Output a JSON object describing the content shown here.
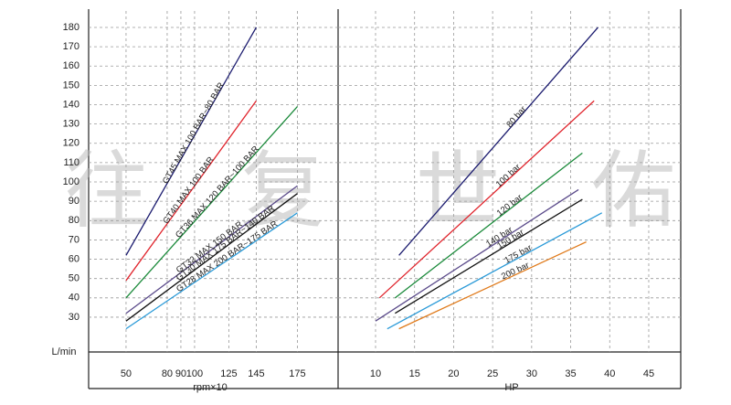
{
  "watermark": "往复世佑",
  "chart_data": [
    {
      "type": "line",
      "x_label": "rpm×10",
      "y_label": "L/min",
      "xlim": [
        22.7,
        204.7
      ],
      "xticks": [
        50,
        80,
        90,
        100,
        125,
        145,
        175
      ],
      "ylim": [
        12,
        188.5
      ],
      "yticks": [
        30,
        40,
        50,
        60,
        70,
        80,
        90,
        100,
        110,
        120,
        130,
        140,
        150,
        160,
        170,
        180
      ],
      "grid": true,
      "series": [
        {
          "name": "GT45 MAX 100 BAR~80 BAR",
          "color": "#1a1a6e",
          "x": [
            50,
            145
          ],
          "values": [
            62,
            180
          ]
        },
        {
          "name": "GT40 MAX 100 BAR",
          "color": "#e0242c",
          "x": [
            50,
            145
          ],
          "values": [
            49,
            142
          ]
        },
        {
          "name": "GT36 MAX 120 BAR~100 BAR",
          "color": "#1a8a3a",
          "x": [
            50,
            175
          ],
          "values": [
            40,
            139
          ]
        },
        {
          "name": "GT32 MAX 150 BAR",
          "color": "#5a4a8a",
          "x": [
            50,
            175
          ],
          "values": [
            32,
            98
          ]
        },
        {
          "name": "GT30 MAX 175 BAR~140 BAR",
          "color": "#111111",
          "x": [
            50,
            175
          ],
          "values": [
            28,
            94
          ]
        },
        {
          "name": "GT28 MAX 200 BAR~175 BAR",
          "color": "#2a9ad8",
          "x": [
            50,
            175
          ],
          "values": [
            24,
            84
          ]
        }
      ]
    },
    {
      "type": "line",
      "x_label": "HP",
      "xlim": [
        5.2,
        49.1
      ],
      "xticks": [
        10,
        15,
        20,
        25,
        30,
        35,
        40,
        45
      ],
      "ylim": [
        12,
        188.5
      ],
      "yticks": [
        30,
        40,
        50,
        60,
        70,
        80,
        90,
        100,
        110,
        120,
        130,
        140,
        150,
        160,
        170,
        180
      ],
      "grid": true,
      "series": [
        {
          "name": "80 bar",
          "color": "#1a1a6e",
          "x": [
            13,
            38.5
          ],
          "values": [
            62,
            180
          ]
        },
        {
          "name": "100 bar",
          "color": "#e0242c",
          "x": [
            10.5,
            38
          ],
          "values": [
            40,
            142
          ]
        },
        {
          "name": "120 bar",
          "color": "#1a8a3a",
          "x": [
            12.5,
            36.5
          ],
          "values": [
            40,
            115
          ]
        },
        {
          "name": "140 bar",
          "color": "#5a4a8a",
          "x": [
            10,
            36
          ],
          "values": [
            28,
            96
          ]
        },
        {
          "name": "150 bar",
          "color": "#111111",
          "x": [
            12.5,
            36.5
          ],
          "values": [
            32,
            91
          ]
        },
        {
          "name": "175 bar",
          "color": "#2a9ad8",
          "x": [
            11.5,
            39
          ],
          "values": [
            24,
            84
          ]
        },
        {
          "name": "200 bar",
          "color": "#e07a1a",
          "x": [
            13,
            37
          ],
          "values": [
            24,
            69
          ]
        }
      ]
    }
  ]
}
